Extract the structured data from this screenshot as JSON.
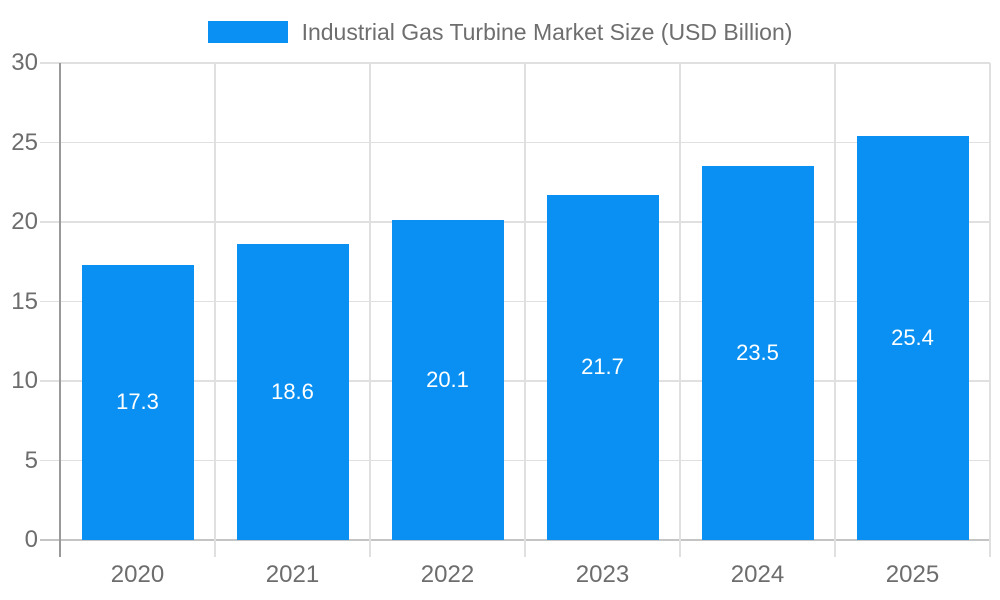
{
  "legend": {
    "label": "Industrial Gas Turbine Market Size (USD Billion)"
  },
  "colors": {
    "bar": "#0990F2",
    "grid": "#e0e0e0",
    "baseline": "#c4c4c4",
    "axis": "#9a9a9a",
    "tick_text": "#6d6d6d",
    "legend_text": "#6e6e6e",
    "value_text": "#ffffff",
    "background": "#ffffff"
  },
  "chart_data": {
    "type": "bar",
    "title": "Industrial Gas Turbine Market Size (USD Billion)",
    "categories": [
      "2020",
      "2021",
      "2022",
      "2023",
      "2024",
      "2025"
    ],
    "values": [
      17.3,
      18.6,
      20.1,
      21.7,
      23.5,
      25.4
    ],
    "ylabel": "",
    "xlabel": "",
    "ylim": [
      0,
      30
    ],
    "yticks": [
      0,
      5,
      10,
      15,
      20,
      25,
      30
    ],
    "grid": true,
    "legend_position": "top-center",
    "value_labels": "inside-center"
  }
}
